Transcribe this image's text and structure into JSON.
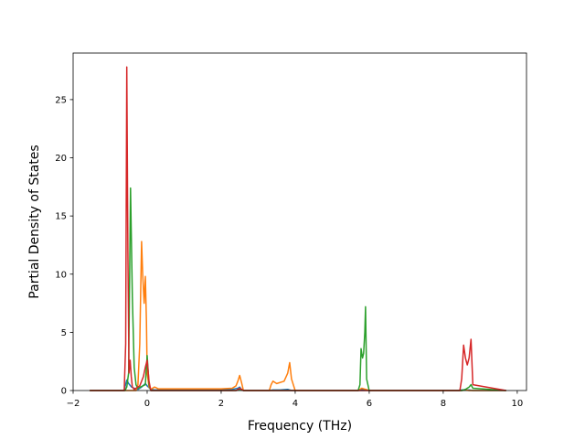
{
  "chart_data": {
    "type": "line",
    "title": "",
    "xlabel": "Frequency (THz)",
    "ylabel": "Partial Density of States",
    "xlim": [
      -2.0,
      10.25
    ],
    "ylim": [
      0,
      29.0
    ],
    "xticks": [
      -2,
      0,
      2,
      4,
      6,
      8,
      10
    ],
    "xtick_labels": [
      "−2",
      "0",
      "2",
      "4",
      "6",
      "8",
      "10"
    ],
    "yticks": [
      0,
      5,
      10,
      15,
      20,
      25
    ],
    "ytick_labels": [
      "0",
      "5",
      "10",
      "15",
      "20",
      "25"
    ],
    "grid": false,
    "legend": "none",
    "series": [
      {
        "color": "#1f77b4",
        "x": [
          -1.55,
          -0.62,
          -0.6,
          -0.55,
          -0.5,
          -0.45,
          -0.42,
          -0.35,
          -0.25,
          -0.15,
          -0.05,
          0.0,
          0.1,
          0.2,
          0.5,
          1.0,
          1.5,
          2.0,
          2.3,
          2.45,
          2.5,
          2.55,
          2.6,
          3.3,
          3.4,
          3.6,
          3.8,
          3.85,
          3.9,
          4.0,
          5.7,
          5.75,
          5.85,
          5.9,
          6.0,
          6.2,
          8.4,
          8.5,
          8.7,
          8.8,
          9.7
        ],
        "y": [
          0,
          0,
          0.3,
          0.9,
          0.6,
          0.4,
          0.3,
          0.2,
          0.1,
          0.3,
          0.6,
          0.4,
          0.1,
          0.05,
          0.05,
          0.05,
          0.05,
          0.05,
          0.1,
          0.2,
          0.3,
          0.1,
          0,
          0,
          0.05,
          0.05,
          0.1,
          0.05,
          0,
          0,
          0,
          0.05,
          0.1,
          0.05,
          0,
          0,
          0,
          0.05,
          0.05,
          0,
          0
        ]
      },
      {
        "color": "#ff7f0e",
        "x": [
          -1.55,
          -0.3,
          -0.25,
          -0.2,
          -0.15,
          -0.12,
          -0.08,
          -0.05,
          -0.02,
          0.0,
          0.05,
          0.1,
          0.2,
          0.3,
          0.5,
          1.0,
          1.5,
          2.0,
          2.3,
          2.4,
          2.45,
          2.5,
          2.55,
          2.6,
          3.3,
          3.35,
          3.4,
          3.5,
          3.7,
          3.8,
          3.85,
          3.9,
          4.0,
          5.7,
          5.8,
          5.9,
          6.0,
          8.5,
          8.6,
          8.7,
          9.7
        ],
        "y": [
          0,
          0,
          0.5,
          4.0,
          12.8,
          10.0,
          7.5,
          9.8,
          6.0,
          1.5,
          0.3,
          0.1,
          0.3,
          0.15,
          0.15,
          0.15,
          0.15,
          0.15,
          0.2,
          0.4,
          0.8,
          1.3,
          0.7,
          0,
          0,
          0.5,
          0.8,
          0.6,
          0.8,
          1.5,
          2.4,
          1.0,
          0,
          0,
          0.2,
          0.1,
          0,
          0,
          0.05,
          0,
          0
        ]
      },
      {
        "color": "#2ca02c",
        "x": [
          -1.55,
          -0.6,
          -0.55,
          -0.5,
          -0.45,
          -0.4,
          -0.35,
          -0.3,
          -0.25,
          -0.05,
          0.0,
          0.05,
          0.1,
          2.4,
          2.5,
          2.6,
          5.7,
          5.75,
          5.78,
          5.82,
          5.85,
          5.88,
          5.9,
          5.93,
          6.0,
          8.5,
          8.6,
          8.7,
          8.75,
          8.8,
          9.7
        ],
        "y": [
          0,
          0,
          0.3,
          1.5,
          17.4,
          8.0,
          2.0,
          0.5,
          0.2,
          0.5,
          3.0,
          0.5,
          0,
          0,
          0.1,
          0,
          0,
          0.5,
          3.6,
          2.8,
          3.2,
          5.0,
          7.2,
          1.0,
          0,
          0,
          0.1,
          0.3,
          0.5,
          0.2,
          0
        ]
      },
      {
        "color": "#d62728",
        "x": [
          -1.55,
          -0.62,
          -0.58,
          -0.55,
          -0.52,
          -0.49,
          -0.46,
          -0.43,
          -0.4,
          -0.35,
          -0.3,
          -0.2,
          -0.1,
          -0.05,
          0.0,
          0.05,
          0.1,
          0.2,
          2.4,
          2.5,
          2.6,
          8.45,
          8.5,
          8.55,
          8.6,
          8.65,
          8.7,
          8.75,
          8.8,
          9.7
        ],
        "y": [
          0,
          0,
          4.0,
          27.8,
          12.0,
          1.5,
          2.6,
          1.2,
          0.3,
          0.1,
          0.2,
          0.4,
          1.2,
          2.0,
          2.6,
          0.8,
          0,
          0,
          0,
          0.2,
          0,
          0,
          1.0,
          3.9,
          2.8,
          2.2,
          2.8,
          4.4,
          0.5,
          0
        ]
      }
    ]
  }
}
